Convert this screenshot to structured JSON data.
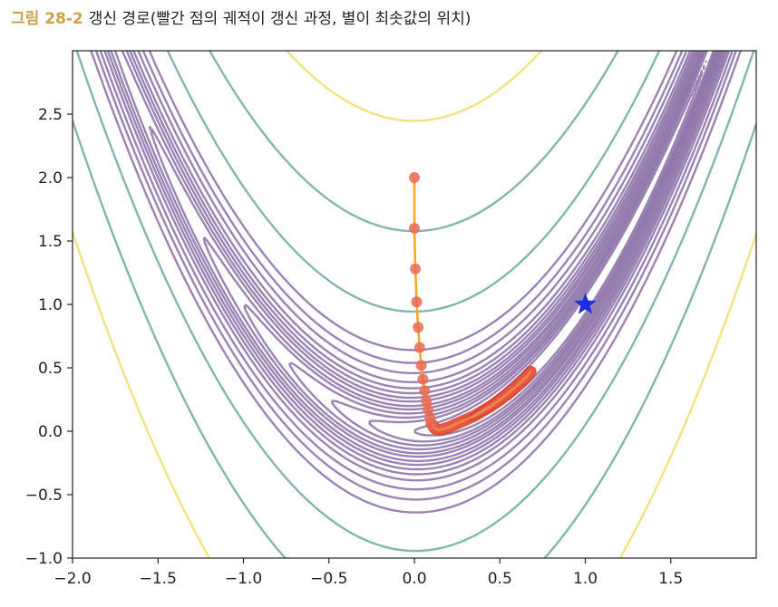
{
  "caption": {
    "number": "그림 28-2",
    "text": "갱신 경로(빨간 점의 궤적이 갱신 과정, 별이 최솟값의 위치)"
  },
  "chart_data": {
    "type": "contour",
    "function": "Rosenbrock",
    "xlim": [
      -2.0,
      2.0
    ],
    "ylim": [
      -1.0,
      3.0
    ],
    "x_ticks": [
      "−2.0",
      "−1.5",
      "−1.0",
      "−0.5",
      "0.0",
      "0.5",
      "1.0",
      "1.5"
    ],
    "y_ticks": [
      "−1.0",
      "−0.5",
      "0.0",
      "0.5",
      "1.0",
      "1.5",
      "2.0",
      "2.5"
    ],
    "x_tick_values": [
      -2.0,
      -1.5,
      -1.0,
      -0.5,
      0.0,
      0.5,
      1.0,
      1.5
    ],
    "y_tick_values": [
      -1.0,
      -0.5,
      0.0,
      0.5,
      1.0,
      1.5,
      2.0,
      2.5
    ],
    "contour_levels": [
      0.5,
      1,
      1.6,
      2.2,
      3,
      4,
      5,
      6.5,
      8,
      10,
      12.5,
      16,
      22,
      30,
      42,
      90,
      250,
      600
    ],
    "minimum": {
      "x": 1.0,
      "y": 1.0,
      "marker": "star"
    },
    "path_start": {
      "x": 0.0,
      "y": 2.0
    },
    "path": {
      "x": [
        0.0,
        0.0,
        0.006,
        0.013,
        0.022,
        0.031,
        0.04,
        0.05,
        0.06,
        0.07,
        0.08,
        0.09,
        0.1,
        0.12,
        0.15,
        0.2,
        0.25,
        0.3,
        0.35,
        0.4,
        0.45,
        0.5,
        0.55,
        0.6,
        0.65,
        0.68
      ],
      "y": [
        2.0,
        1.6,
        1.28,
        1.02,
        0.82,
        0.66,
        0.52,
        0.41,
        0.32,
        0.24,
        0.17,
        0.11,
        0.06,
        0.02,
        0.01,
        0.03,
        0.06,
        0.09,
        0.12,
        0.16,
        0.2,
        0.25,
        0.3,
        0.36,
        0.42,
        0.47
      ]
    },
    "colors": {
      "contour_low": "#8a6ea6",
      "contour_mid": "#6fa8a0",
      "contour_high": "#f0de6a",
      "path_line": "#f5a623",
      "path_point": "#e86a55",
      "dense_path": "#e03a22",
      "star": "#1f2fe0"
    }
  }
}
